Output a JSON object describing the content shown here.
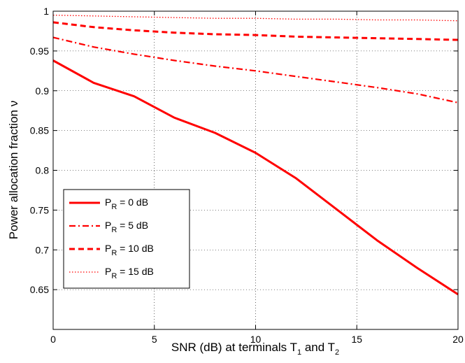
{
  "chart_data": {
    "type": "line",
    "title": "",
    "xlabel": {
      "main": "SNR (dB) at terminals T",
      "sub1": "1",
      "mid": " and T",
      "sub2": "2"
    },
    "ylabel": "Power allocation fraction ν",
    "xlim": [
      0,
      20
    ],
    "ylim": [
      0.6,
      1.0
    ],
    "xticks": [
      0,
      5,
      10,
      15,
      20
    ],
    "yticks": [
      0.65,
      0.7,
      0.75,
      0.8,
      0.85,
      0.9,
      0.95,
      1
    ],
    "ytick_labels": [
      "0.65",
      "0.7",
      "0.75",
      "0.8",
      "0.85",
      "0.9",
      "0.95",
      "1"
    ],
    "grid": true,
    "legend_position": "lower-left",
    "color": "#ff0000",
    "series": [
      {
        "name_prefix": "P",
        "name_sub": "R",
        "name_suffix": " = 0 dB",
        "style": "solid",
        "x": [
          0,
          2,
          4,
          6,
          8,
          10,
          12,
          14,
          16,
          18,
          20
        ],
        "y": [
          0.938,
          0.91,
          0.893,
          0.866,
          0.847,
          0.822,
          0.79,
          0.751,
          0.712,
          0.677,
          0.644
        ]
      },
      {
        "name_prefix": "P",
        "name_sub": "R",
        "name_suffix": " = 5 dB",
        "style": "dashdot",
        "x": [
          0,
          2,
          4,
          6,
          8,
          10,
          12,
          14,
          16,
          18,
          20
        ],
        "y": [
          0.967,
          0.955,
          0.946,
          0.938,
          0.931,
          0.925,
          0.918,
          0.911,
          0.904,
          0.896,
          0.885
        ]
      },
      {
        "name_prefix": "P",
        "name_sub": "R",
        "name_suffix": " = 10 dB",
        "style": "dashed",
        "x": [
          0,
          2,
          4,
          6,
          8,
          10,
          12,
          14,
          16,
          18,
          20
        ],
        "y": [
          0.986,
          0.98,
          0.976,
          0.973,
          0.971,
          0.97,
          0.968,
          0.967,
          0.966,
          0.965,
          0.964
        ]
      },
      {
        "name_prefix": "P",
        "name_sub": "R",
        "name_suffix": " = 15 dB",
        "style": "dotted",
        "x": [
          0,
          2,
          4,
          6,
          8,
          10,
          12,
          14,
          16,
          18,
          20
        ],
        "y": [
          0.995,
          0.994,
          0.993,
          0.992,
          0.991,
          0.991,
          0.99,
          0.99,
          0.989,
          0.989,
          0.988
        ]
      }
    ]
  }
}
